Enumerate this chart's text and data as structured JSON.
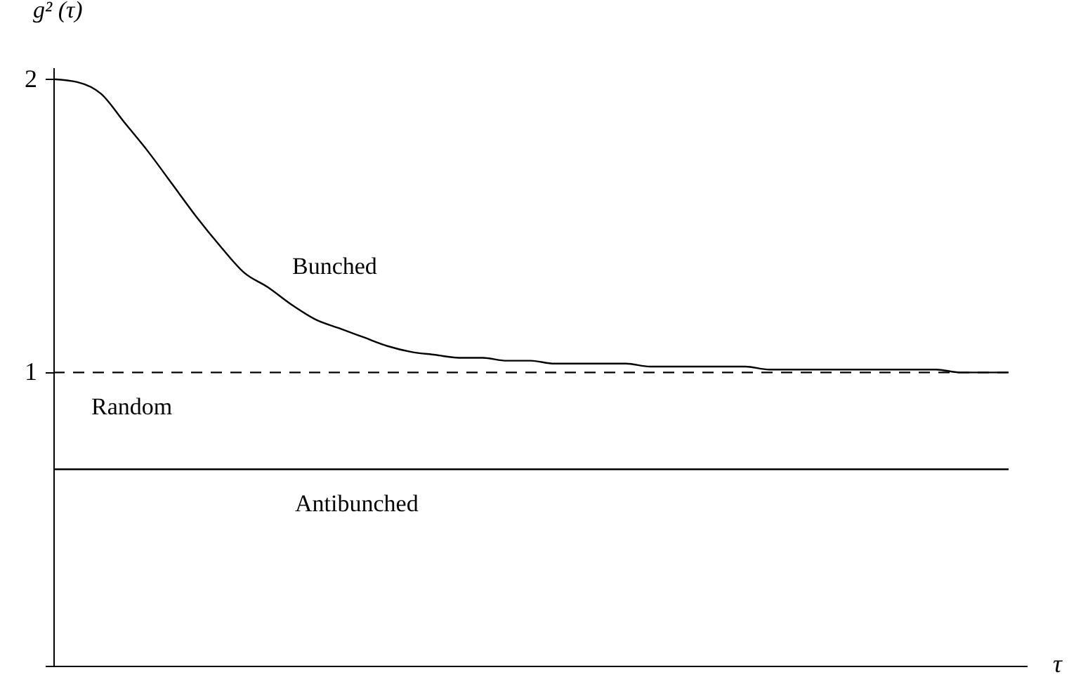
{
  "chart_data": {
    "type": "line",
    "ylabel": "g² (τ)",
    "xlabel": "τ",
    "categories": [
      null,
      null,
      null,
      null,
      null,
      null,
      null,
      null,
      null,
      null,
      null,
      null,
      null,
      null,
      null,
      null,
      null,
      null,
      null,
      null,
      null,
      null,
      null,
      null,
      null,
      null,
      null,
      null,
      null,
      null,
      null,
      null,
      null,
      null,
      null,
      null,
      null,
      null,
      null,
      null,
      null
    ],
    "series": [
      {
        "color": "#000000",
        "values": [
          2.0,
          1.99,
          1.95,
          1.85,
          1.75,
          1.64,
          1.53,
          1.43,
          1.34,
          1.29,
          1.23,
          1.18,
          1.15,
          1.12,
          1.09,
          1.07,
          1.06,
          1.05,
          1.05,
          1.04,
          1.04,
          1.03,
          1.03,
          1.03,
          1.03,
          1.02,
          1.02,
          1.02,
          1.02,
          1.02,
          1.01,
          1.01,
          1.01,
          1.01,
          1.01,
          1.01,
          1.01,
          1.01,
          1.0,
          1.0,
          1.0
        ]
      }
    ],
    "ylim": [
      0,
      2.04
    ],
    "yticks": [
      {
        "value": 0,
        "label": null
      },
      1,
      2
    ],
    "ref_lines": [
      {
        "axis": "y",
        "value": 1,
        "label": "Random",
        "line_style": "dashed",
        "color": "#000000"
      },
      {
        "axis": "y",
        "value": 0.67,
        "label": "Antibunched",
        "line_style": "solid",
        "color": "#000000"
      }
    ],
    "annotations": [
      "Bunched"
    ],
    "tick_labels": "y",
    "grid": false,
    "marker": "none",
    "line_style": "solid"
  }
}
